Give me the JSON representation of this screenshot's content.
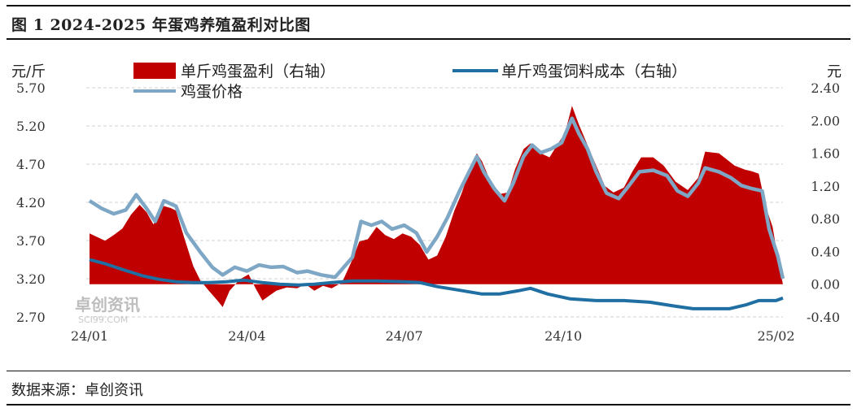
{
  "figure": {
    "title": "图 1 2024-2025 年蛋鸡养殖盈利对比图",
    "source": "数据来源：卓创资讯",
    "watermark": "卓创资讯",
    "watermark_sub": "SCI99.COM"
  },
  "colors": {
    "profit": "#c00000",
    "feed_cost": "#1f6fa3",
    "egg_price": "#7ea7c5",
    "grid": "#d0d0d0"
  },
  "chart_data": {
    "type": "area",
    "title": "图 1 2024-2025 年蛋鸡养殖盈利对比图",
    "left_axis": {
      "unit": "元/斤",
      "ylim": [
        2.7,
        5.7
      ],
      "ticks": [
        "5.70",
        "5.20",
        "4.70",
        "4.20",
        "3.70",
        "3.20",
        "2.70"
      ]
    },
    "right_axis": {
      "unit": "元",
      "ylim": [
        -0.4,
        2.4
      ],
      "ticks": [
        "2.40",
        "2.00",
        "1.60",
        "1.20",
        "0.80",
        "0.40",
        "0.00",
        "-0.40"
      ]
    },
    "x_ticks": [
      "24/01",
      "24/04",
      "24/07",
      "24/10",
      "25/02"
    ],
    "x_range": [
      "2024-01-01",
      "2025-02-05"
    ],
    "grid": "horizontal dashed",
    "legend": [
      {
        "label": "单斤鸡蛋盈利（右轴）",
        "type": "area",
        "axis": "right"
      },
      {
        "label": "单斤鸡蛋饲料成本（右轴）",
        "type": "line",
        "axis": "right"
      },
      {
        "label": "鸡蛋价格",
        "type": "line",
        "axis": "left"
      }
    ],
    "series": [
      {
        "name": "单斤鸡蛋盈利（右轴）",
        "axis": "right",
        "points": [
          [
            "2024-01-01",
            0.62
          ],
          [
            "2024-01-05",
            0.58
          ],
          [
            "2024-01-10",
            0.53
          ],
          [
            "2024-01-15",
            0.6
          ],
          [
            "2024-01-20",
            0.68
          ],
          [
            "2024-01-25",
            0.85
          ],
          [
            "2024-01-30",
            0.97
          ],
          [
            "2024-02-03",
            0.88
          ],
          [
            "2024-02-07",
            0.73
          ],
          [
            "2024-02-12",
            0.96
          ],
          [
            "2024-02-17",
            0.93
          ],
          [
            "2024-02-20",
            0.9
          ],
          [
            "2024-02-25",
            0.55
          ],
          [
            "2024-03-01",
            0.22
          ],
          [
            "2024-03-05",
            0.05
          ],
          [
            "2024-03-10",
            -0.08
          ],
          [
            "2024-03-15",
            -0.2
          ],
          [
            "2024-03-18",
            -0.28
          ],
          [
            "2024-03-22",
            -0.08
          ],
          [
            "2024-03-28",
            0.06
          ],
          [
            "2024-04-02",
            0.12
          ],
          [
            "2024-04-06",
            -0.05
          ],
          [
            "2024-04-10",
            -0.2
          ],
          [
            "2024-04-14",
            -0.14
          ],
          [
            "2024-04-18",
            -0.08
          ],
          [
            "2024-04-24",
            -0.04
          ],
          [
            "2024-04-30",
            -0.05
          ],
          [
            "2024-05-05",
            0.0
          ],
          [
            "2024-05-10",
            -0.08
          ],
          [
            "2024-05-15",
            -0.02
          ],
          [
            "2024-05-20",
            -0.05
          ],
          [
            "2024-05-26",
            0.02
          ],
          [
            "2024-06-01",
            0.3
          ],
          [
            "2024-06-05",
            0.52
          ],
          [
            "2024-06-10",
            0.55
          ],
          [
            "2024-06-15",
            0.7
          ],
          [
            "2024-06-20",
            0.6
          ],
          [
            "2024-06-25",
            0.55
          ],
          [
            "2024-06-30",
            0.62
          ],
          [
            "2024-07-05",
            0.58
          ],
          [
            "2024-07-10",
            0.48
          ],
          [
            "2024-07-15",
            0.3
          ],
          [
            "2024-07-20",
            0.35
          ],
          [
            "2024-07-25",
            0.58
          ],
          [
            "2024-07-30",
            0.9
          ],
          [
            "2024-08-03",
            1.1
          ],
          [
            "2024-08-08",
            1.4
          ],
          [
            "2024-08-12",
            1.6
          ],
          [
            "2024-08-15",
            1.5
          ],
          [
            "2024-08-20",
            1.25
          ],
          [
            "2024-08-25",
            1.1
          ],
          [
            "2024-08-30",
            1.12
          ],
          [
            "2024-09-03",
            1.4
          ],
          [
            "2024-09-08",
            1.65
          ],
          [
            "2024-09-12",
            1.72
          ],
          [
            "2024-09-18",
            1.6
          ],
          [
            "2024-09-23",
            1.55
          ],
          [
            "2024-09-28",
            1.72
          ],
          [
            "2024-10-02",
            1.85
          ],
          [
            "2024-10-06",
            2.18
          ],
          [
            "2024-10-10",
            1.95
          ],
          [
            "2024-10-15",
            1.7
          ],
          [
            "2024-10-20",
            1.45
          ],
          [
            "2024-10-25",
            1.2
          ],
          [
            "2024-10-30",
            1.12
          ],
          [
            "2024-11-05",
            1.18
          ],
          [
            "2024-11-10",
            1.38
          ],
          [
            "2024-11-15",
            1.55
          ],
          [
            "2024-11-22",
            1.55
          ],
          [
            "2024-11-28",
            1.45
          ],
          [
            "2024-12-05",
            1.25
          ],
          [
            "2024-12-12",
            1.15
          ],
          [
            "2024-12-18",
            1.3
          ],
          [
            "2024-12-22",
            1.62
          ],
          [
            "2024-12-30",
            1.6
          ],
          [
            "2025-01-08",
            1.45
          ],
          [
            "2025-01-14",
            1.4
          ],
          [
            "2025-01-18",
            1.38
          ],
          [
            "2025-01-22",
            1.35
          ],
          [
            "2025-01-26",
            0.95
          ],
          [
            "2025-01-30",
            0.7
          ],
          [
            "2025-02-03",
            0.2
          ],
          [
            "2025-02-05",
            0.0
          ]
        ]
      },
      {
        "name": "单斤鸡蛋饲料成本（右轴）",
        "axis": "right",
        "points": [
          [
            "2024-01-01",
            0.3
          ],
          [
            "2024-01-10",
            0.25
          ],
          [
            "2024-01-20",
            0.18
          ],
          [
            "2024-02-01",
            0.1
          ],
          [
            "2024-02-10",
            0.06
          ],
          [
            "2024-02-20",
            0.03
          ],
          [
            "2024-03-01",
            0.02
          ],
          [
            "2024-03-10",
            0.02
          ],
          [
            "2024-03-20",
            0.03
          ],
          [
            "2024-03-30",
            0.05
          ],
          [
            "2024-04-10",
            0.02
          ],
          [
            "2024-04-20",
            0.0
          ],
          [
            "2024-05-01",
            -0.01
          ],
          [
            "2024-05-10",
            0.0
          ],
          [
            "2024-05-20",
            0.02
          ],
          [
            "2024-06-01",
            0.04
          ],
          [
            "2024-06-15",
            0.04
          ],
          [
            "2024-07-01",
            0.03
          ],
          [
            "2024-07-10",
            0.02
          ],
          [
            "2024-07-20",
            -0.03
          ],
          [
            "2024-08-01",
            -0.07
          ],
          [
            "2024-08-15",
            -0.12
          ],
          [
            "2024-08-25",
            -0.12
          ],
          [
            "2024-09-05",
            -0.08
          ],
          [
            "2024-09-12",
            -0.05
          ],
          [
            "2024-09-22",
            -0.12
          ],
          [
            "2024-10-05",
            -0.18
          ],
          [
            "2024-10-20",
            -0.2
          ],
          [
            "2024-11-05",
            -0.2
          ],
          [
            "2024-11-20",
            -0.22
          ],
          [
            "2024-12-05",
            -0.27
          ],
          [
            "2024-12-15",
            -0.3
          ],
          [
            "2024-12-25",
            -0.3
          ],
          [
            "2025-01-05",
            -0.3
          ],
          [
            "2025-01-15",
            -0.25
          ],
          [
            "2025-01-22",
            -0.2
          ],
          [
            "2025-02-01",
            -0.2
          ],
          [
            "2025-02-05",
            -0.17
          ]
        ]
      },
      {
        "name": "鸡蛋价格",
        "axis": "left",
        "points": [
          [
            "2024-01-01",
            4.22
          ],
          [
            "2024-01-08",
            4.12
          ],
          [
            "2024-01-15",
            4.05
          ],
          [
            "2024-01-22",
            4.1
          ],
          [
            "2024-01-28",
            4.3
          ],
          [
            "2024-02-03",
            4.12
          ],
          [
            "2024-02-08",
            3.95
          ],
          [
            "2024-02-13",
            4.22
          ],
          [
            "2024-02-20",
            4.15
          ],
          [
            "2024-02-26",
            3.8
          ],
          [
            "2024-03-05",
            3.55
          ],
          [
            "2024-03-12",
            3.35
          ],
          [
            "2024-03-18",
            3.25
          ],
          [
            "2024-03-25",
            3.35
          ],
          [
            "2024-04-01",
            3.3
          ],
          [
            "2024-04-08",
            3.38
          ],
          [
            "2024-04-15",
            3.35
          ],
          [
            "2024-04-22",
            3.36
          ],
          [
            "2024-04-30",
            3.28
          ],
          [
            "2024-05-06",
            3.3
          ],
          [
            "2024-05-14",
            3.25
          ],
          [
            "2024-05-22",
            3.22
          ],
          [
            "2024-06-01",
            3.48
          ],
          [
            "2024-06-06",
            3.95
          ],
          [
            "2024-06-12",
            3.9
          ],
          [
            "2024-06-18",
            3.95
          ],
          [
            "2024-06-24",
            3.85
          ],
          [
            "2024-07-01",
            3.9
          ],
          [
            "2024-07-08",
            3.8
          ],
          [
            "2024-07-14",
            3.55
          ],
          [
            "2024-07-20",
            3.75
          ],
          [
            "2024-07-26",
            4.0
          ],
          [
            "2024-08-02",
            4.35
          ],
          [
            "2024-08-08",
            4.62
          ],
          [
            "2024-08-12",
            4.8
          ],
          [
            "2024-08-16",
            4.6
          ],
          [
            "2024-08-22",
            4.38
          ],
          [
            "2024-08-28",
            4.22
          ],
          [
            "2024-09-02",
            4.45
          ],
          [
            "2024-09-08",
            4.8
          ],
          [
            "2024-09-13",
            4.95
          ],
          [
            "2024-09-18",
            4.85
          ],
          [
            "2024-09-24",
            4.9
          ],
          [
            "2024-09-30",
            4.98
          ],
          [
            "2024-10-06",
            5.3
          ],
          [
            "2024-10-10",
            5.1
          ],
          [
            "2024-10-15",
            4.9
          ],
          [
            "2024-10-20",
            4.6
          ],
          [
            "2024-10-26",
            4.32
          ],
          [
            "2024-11-02",
            4.25
          ],
          [
            "2024-11-08",
            4.42
          ],
          [
            "2024-11-14",
            4.6
          ],
          [
            "2024-11-22",
            4.62
          ],
          [
            "2024-11-30",
            4.55
          ],
          [
            "2024-12-06",
            4.35
          ],
          [
            "2024-12-12",
            4.28
          ],
          [
            "2024-12-18",
            4.45
          ],
          [
            "2024-12-22",
            4.65
          ],
          [
            "2024-12-30",
            4.6
          ],
          [
            "2025-01-06",
            4.52
          ],
          [
            "2025-01-12",
            4.42
          ],
          [
            "2025-01-18",
            4.38
          ],
          [
            "2025-01-24",
            4.35
          ],
          [
            "2025-01-28",
            3.85
          ],
          [
            "2025-02-02",
            3.5
          ],
          [
            "2025-02-05",
            3.2
          ]
        ]
      }
    ]
  }
}
